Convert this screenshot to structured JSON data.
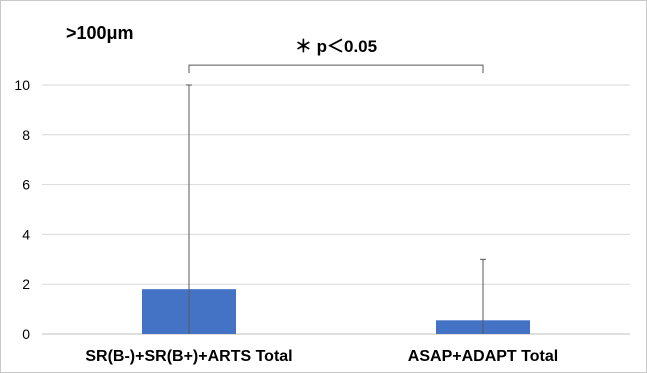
{
  "chart_data": {
    "type": "bar",
    "title": "",
    "xlabel": "",
    "ylabel": "",
    "corner_label": ">100μm",
    "categories": [
      "SR(B-)+SR(B+)+ARTS Total",
      "ASAP+ADAPT Total"
    ],
    "values": [
      1.8,
      0.55
    ],
    "error_upper": [
      10.0,
      3.0
    ],
    "ylim": [
      0,
      10
    ],
    "yticks": [
      "0",
      "2",
      "4",
      "6",
      "8",
      "10"
    ],
    "grid": true,
    "bar_color": "#4472c4",
    "annotation": {
      "text": "＊ p＜0.05",
      "bracket_y": 10.8
    }
  }
}
